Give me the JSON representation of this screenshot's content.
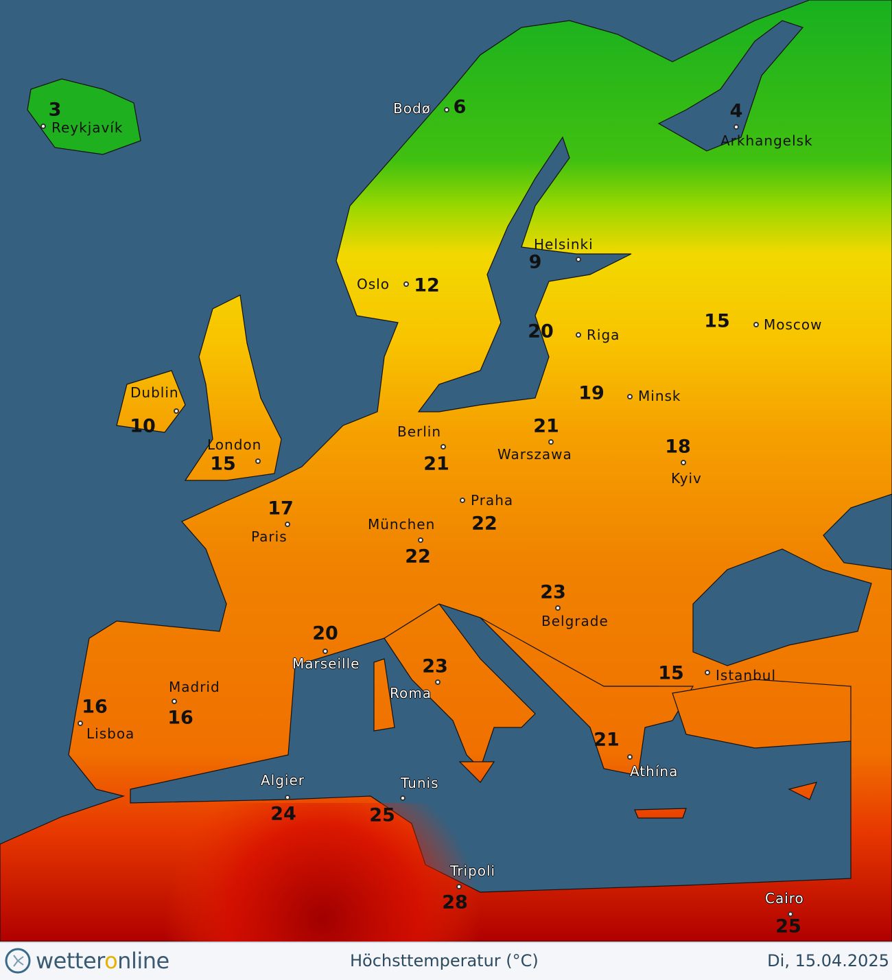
{
  "map": {
    "colors": {
      "sea": "#36607f",
      "cold": "#22b822",
      "cool": "#8ad400",
      "mild": "#f5d800",
      "warm": "#f59a00",
      "hot": "#e02000",
      "very_hot": "#a00000"
    },
    "cities": [
      {
        "name": "Reykjavík",
        "temp": "3"
      },
      {
        "name": "Bodø",
        "temp": "6"
      },
      {
        "name": "Arkhangelsk",
        "temp": "4"
      },
      {
        "name": "Helsinki",
        "temp": "9"
      },
      {
        "name": "Oslo",
        "temp": "12"
      },
      {
        "name": "Riga",
        "temp": "20"
      },
      {
        "name": "Moscow",
        "temp": "15"
      },
      {
        "name": "Dublin",
        "temp": "10"
      },
      {
        "name": "London",
        "temp": "15"
      },
      {
        "name": "Minsk",
        "temp": "19"
      },
      {
        "name": "Berlin",
        "temp": "21"
      },
      {
        "name": "Warszawa",
        "temp": "21"
      },
      {
        "name": "Kyiv",
        "temp": "18"
      },
      {
        "name": "Praha",
        "temp": "22"
      },
      {
        "name": "Paris",
        "temp": "17"
      },
      {
        "name": "München",
        "temp": "22"
      },
      {
        "name": "Belgrade",
        "temp": "23"
      },
      {
        "name": "Marseille",
        "temp": "20"
      },
      {
        "name": "Roma",
        "temp": "23"
      },
      {
        "name": "Istanbul",
        "temp": "15"
      },
      {
        "name": "Madrid",
        "temp": "16"
      },
      {
        "name": "Lisboa",
        "temp": "16"
      },
      {
        "name": "Athína",
        "temp": "21"
      },
      {
        "name": "Algier",
        "temp": "24"
      },
      {
        "name": "Tunis",
        "temp": "25"
      },
      {
        "name": "Tripoli",
        "temp": "28"
      },
      {
        "name": "Cairo",
        "temp": "25"
      }
    ]
  },
  "footer": {
    "logo": {
      "part1": "wetter",
      "part2": "o",
      "part3": "nline",
      "icon": "wetteronline-logo-icon"
    },
    "product": "Höchsttemperatur (°C)",
    "date": "Di, 15.04.2025"
  }
}
